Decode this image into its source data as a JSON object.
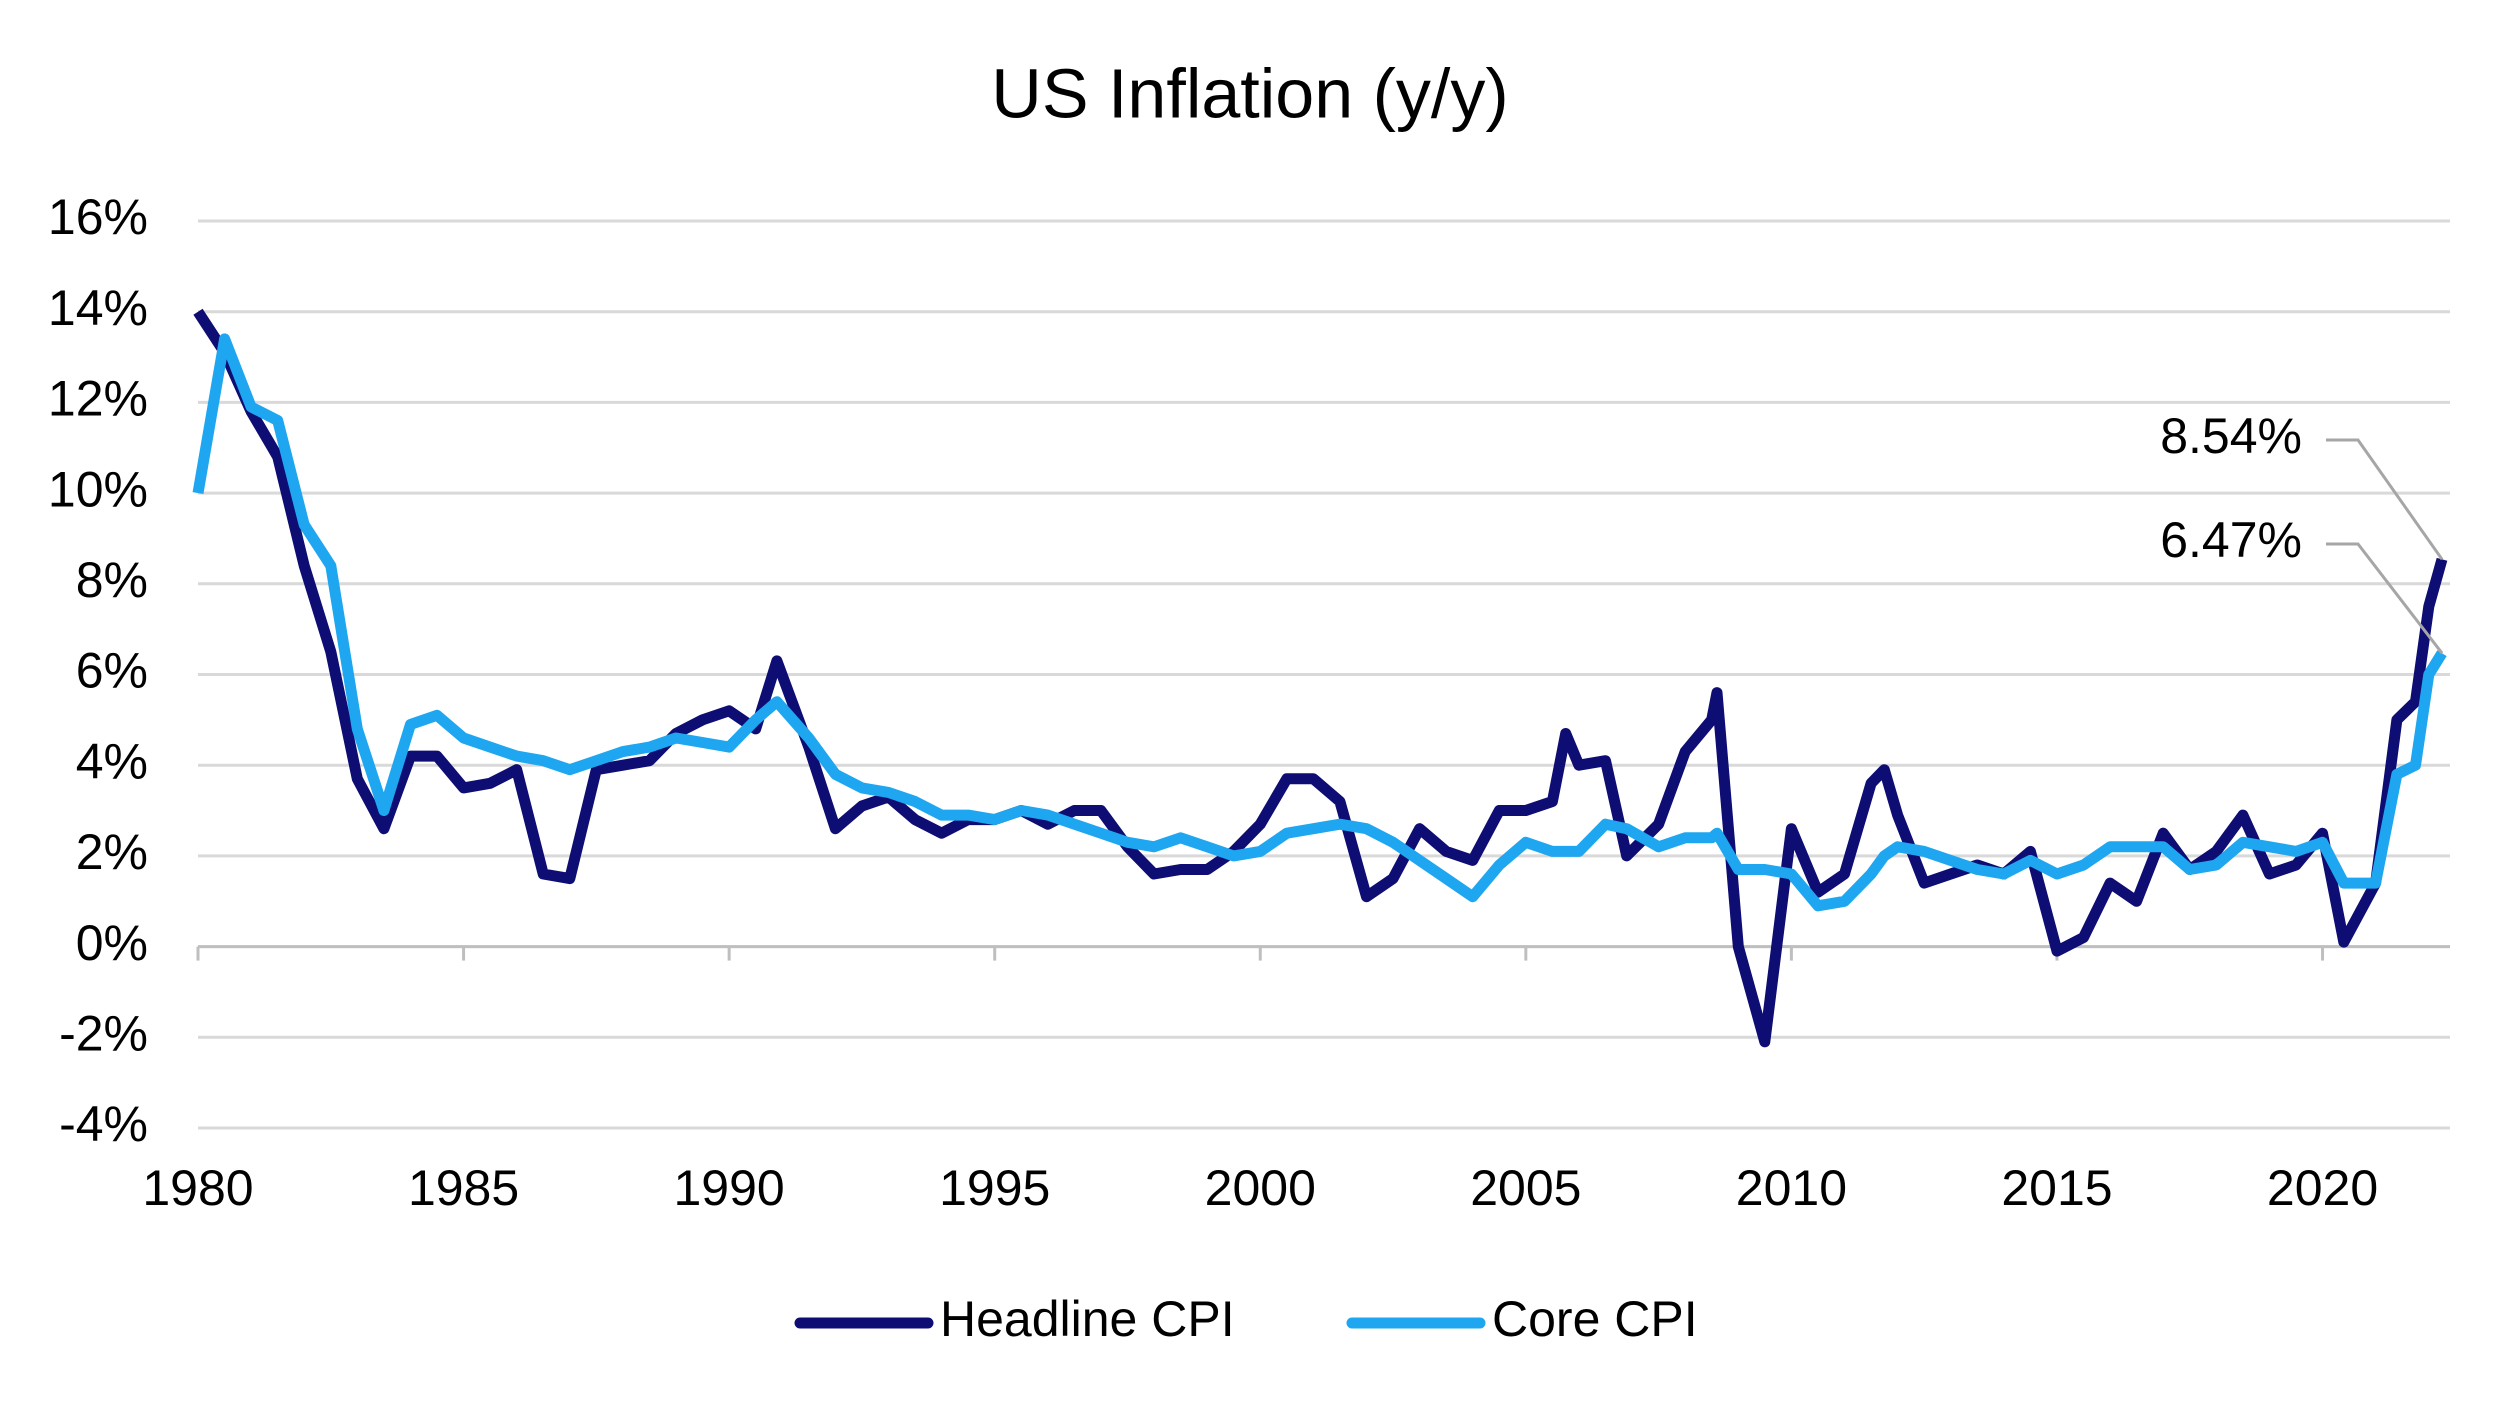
{
  "chart_data": {
    "type": "line",
    "title": "US Inflation (y/y)",
    "x": [
      1980.0,
      1980.5,
      1981.0,
      1981.5,
      1982.0,
      1982.5,
      1983.0,
      1983.5,
      1984.0,
      1984.5,
      1985.0,
      1985.5,
      1986.0,
      1986.5,
      1987.0,
      1987.5,
      1988.0,
      1988.5,
      1989.0,
      1989.5,
      1990.0,
      1990.5,
      1990.9,
      1991.5,
      1992.0,
      1992.5,
      1993.0,
      1993.5,
      1994.0,
      1994.5,
      1995.0,
      1995.5,
      1996.0,
      1996.5,
      1997.0,
      1997.5,
      1998.0,
      1998.5,
      1999.0,
      1999.5,
      2000.0,
      2000.5,
      2001.0,
      2001.5,
      2002.0,
      2002.5,
      2003.0,
      2003.5,
      2004.0,
      2004.5,
      2005.0,
      2005.5,
      2005.75,
      2006.0,
      2006.5,
      2006.9,
      2007.5,
      2008.0,
      2008.5,
      2008.6,
      2009.0,
      2009.5,
      2010.0,
      2010.5,
      2011.0,
      2011.5,
      2011.75,
      2012.0,
      2012.5,
      2013.0,
      2013.5,
      2014.0,
      2014.5,
      2015.0,
      2015.5,
      2016.0,
      2016.5,
      2017.0,
      2017.5,
      2018.0,
      2018.5,
      2019.0,
      2019.5,
      2020.0,
      2020.4,
      2021.0,
      2021.4,
      2021.75,
      2022.0,
      2022.25
    ],
    "series": [
      {
        "name": "Headline CPI",
        "color": "#0d0d73",
        "end_label": "8.54%",
        "values": [
          14.0,
          13.1,
          11.8,
          10.8,
          8.4,
          6.5,
          3.7,
          2.6,
          4.2,
          4.2,
          3.5,
          3.6,
          3.9,
          1.6,
          1.5,
          3.9,
          4.0,
          4.1,
          4.7,
          5.0,
          5.2,
          4.8,
          6.3,
          4.4,
          2.6,
          3.1,
          3.3,
          2.8,
          2.5,
          2.8,
          2.8,
          3.0,
          2.7,
          3.0,
          3.0,
          2.2,
          1.6,
          1.7,
          1.7,
          2.1,
          2.7,
          3.7,
          3.7,
          3.2,
          1.1,
          1.5,
          2.6,
          2.1,
          1.9,
          3.0,
          3.0,
          3.2,
          4.7,
          4.0,
          4.1,
          2.0,
          2.7,
          4.3,
          5.0,
          5.6,
          0.0,
          -2.1,
          2.6,
          1.2,
          1.6,
          3.6,
          3.9,
          2.9,
          1.4,
          1.6,
          1.8,
          1.6,
          2.1,
          -0.1,
          0.2,
          1.4,
          1.0,
          2.5,
          1.7,
          2.1,
          2.9,
          1.6,
          1.8,
          2.5,
          0.1,
          1.4,
          5.0,
          5.4,
          7.5,
          8.54
        ]
      },
      {
        "name": "Core CPI",
        "color": "#1ea7f0",
        "end_label": "6.47%",
        "values": [
          10.0,
          13.4,
          11.9,
          11.6,
          9.3,
          8.4,
          4.8,
          3.0,
          4.9,
          5.1,
          4.6,
          4.4,
          4.2,
          4.1,
          3.9,
          4.1,
          4.3,
          4.4,
          4.6,
          4.5,
          4.4,
          5.0,
          5.4,
          4.6,
          3.8,
          3.5,
          3.4,
          3.2,
          2.9,
          2.9,
          2.8,
          3.0,
          2.9,
          2.7,
          2.5,
          2.3,
          2.2,
          2.4,
          2.2,
          2.0,
          2.1,
          2.5,
          2.6,
          2.7,
          2.6,
          2.3,
          1.9,
          1.5,
          1.1,
          1.8,
          2.3,
          2.1,
          2.1,
          2.1,
          2.7,
          2.6,
          2.2,
          2.4,
          2.4,
          2.5,
          1.7,
          1.7,
          1.6,
          0.9,
          1.0,
          1.6,
          2.0,
          2.2,
          2.1,
          1.9,
          1.7,
          1.6,
          1.9,
          1.6,
          1.8,
          2.2,
          2.2,
          2.2,
          1.7,
          1.8,
          2.3,
          2.2,
          2.1,
          2.3,
          1.4,
          1.4,
          3.8,
          4.0,
          6.0,
          6.47
        ]
      }
    ],
    "xlim": [
      1980,
      2022.4
    ],
    "xticks": [
      1980,
      1985,
      1990,
      1995,
      2000,
      2005,
      2010,
      2015,
      2020
    ],
    "ylim": [
      -4,
      16
    ],
    "yticks": [
      {
        "value": -4,
        "label": "-4%"
      },
      {
        "value": -2,
        "label": "-2%"
      },
      {
        "value": 0,
        "label": "0%"
      },
      {
        "value": 2,
        "label": "2%"
      },
      {
        "value": 4,
        "label": "4%"
      },
      {
        "value": 6,
        "label": "6%"
      },
      {
        "value": 8,
        "label": "8%"
      },
      {
        "value": 10,
        "label": "10%"
      },
      {
        "value": 12,
        "label": "12%"
      },
      {
        "value": 14,
        "label": "14%"
      },
      {
        "value": 16,
        "label": "16%"
      }
    ],
    "grid": true,
    "legend": "bottom"
  }
}
